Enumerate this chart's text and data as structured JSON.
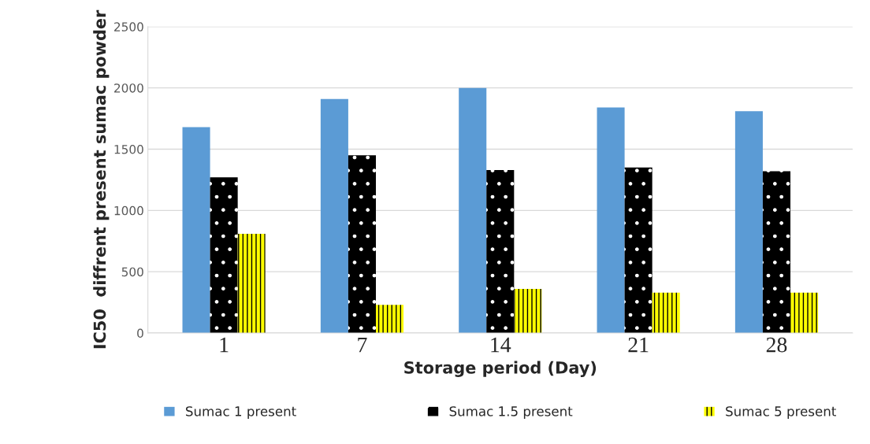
{
  "chart_data": {
    "type": "bar",
    "xlabel": "Storage period (Day)",
    "ylabel": "IC50  diffrent present sumac powder",
    "categories": [
      "1",
      "7",
      "14",
      "21",
      "28"
    ],
    "series": [
      {
        "name": "Sumac 1 present",
        "color": "#5b9bd5",
        "values": [
          1680,
          1910,
          2000,
          1840,
          1810
        ]
      },
      {
        "name": "Sumac 1.5 present",
        "color": "#000000",
        "values": [
          1270,
          1450,
          1330,
          1350,
          1320
        ]
      },
      {
        "name": "Sumac 5 present",
        "color": "#ffff00",
        "values": [
          810,
          230,
          360,
          330,
          330
        ]
      }
    ],
    "ylim": [
      0,
      2500
    ],
    "yticks": [
      0,
      500,
      1000,
      1500,
      2000,
      2500
    ],
    "grid": "y",
    "legend": "bottom"
  }
}
